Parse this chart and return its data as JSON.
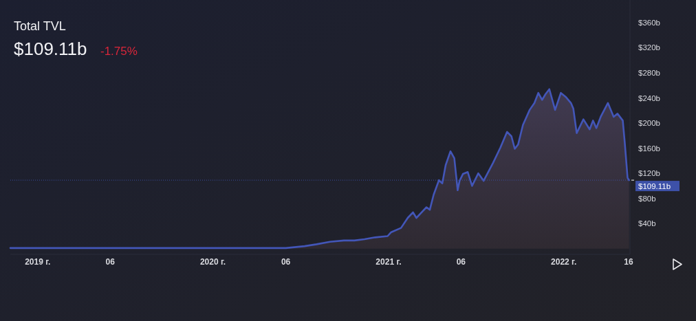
{
  "chart_data": {
    "type": "area",
    "title": "Total TVL",
    "subtitle": "$109.11b",
    "annotations": [
      "-1.75%"
    ],
    "color": "#4356b8",
    "x": [
      "2018-11-05",
      "2019-06-01",
      "2020-01-01",
      "2020-06-01",
      "2020-07-10",
      "2020-08-04",
      "2020-09-01",
      "2020-09-30",
      "2020-10-22",
      "2020-11-12",
      "2020-12-04",
      "2020-12-30",
      "2021-01-06",
      "2021-01-27",
      "2021-02-10",
      "2021-02-21",
      "2021-02-28",
      "2021-03-11",
      "2021-03-21",
      "2021-03-28",
      "2021-04-05",
      "2021-04-16",
      "2021-04-23",
      "2021-04-30",
      "2021-05-10",
      "2021-05-18",
      "2021-05-22",
      "2021-05-25",
      "2021-05-29",
      "2021-06-05",
      "2021-06-15",
      "2021-06-24",
      "2021-07-07",
      "2021-07-18",
      "2021-08-07",
      "2021-08-22",
      "2021-09-05",
      "2021-09-14",
      "2021-09-21",
      "2021-09-28",
      "2021-10-08",
      "2021-10-22",
      "2021-11-01",
      "2021-11-09",
      "2021-11-17",
      "2021-11-24",
      "2021-12-02",
      "2021-12-14",
      "2021-12-26",
      "2022-01-06",
      "2022-01-16",
      "2022-01-21",
      "2022-01-28",
      "2022-02-11",
      "2022-02-24",
      "2022-03-03",
      "2022-03-10",
      "2022-03-19",
      "2022-04-03",
      "2022-04-15",
      "2022-04-23",
      "2022-05-04",
      "2022-05-08",
      "2022-05-14",
      "2022-05-17"
    ],
    "values": [
      1,
      1,
      1,
      1,
      4,
      7,
      11,
      13,
      13,
      15,
      18,
      20,
      26,
      33,
      49,
      58,
      49,
      58,
      66,
      62,
      86,
      109,
      104,
      133,
      155,
      144,
      115,
      93,
      108,
      119,
      122,
      100,
      120,
      108,
      137,
      161,
      186,
      179,
      159,
      166,
      197,
      221,
      232,
      248,
      237,
      246,
      254,
      221,
      248,
      241,
      232,
      223,
      184,
      206,
      190,
      204,
      192,
      210,
      232,
      210,
      215,
      204,
      170,
      113,
      109.11
    ],
    "xlim": [
      "2018-11-05",
      "2022-05-19"
    ],
    "xticks": [
      {
        "value": "2019-01-01",
        "label": "2019 г."
      },
      {
        "value": "2019-06-01",
        "label": "06"
      },
      {
        "value": "2020-01-01",
        "label": "2020 г."
      },
      {
        "value": "2020-06-01",
        "label": "06"
      },
      {
        "value": "2021-01-01",
        "label": "2021 г."
      },
      {
        "value": "2021-06-01",
        "label": "06"
      },
      {
        "value": "2022-01-01",
        "label": "2022 г."
      },
      {
        "value": "2022-05-16",
        "label": "16"
      }
    ],
    "ylim": [
      -9,
      396
    ],
    "yticks": [
      {
        "value": 40,
        "label": "$40b"
      },
      {
        "value": 80,
        "label": "$80b"
      },
      {
        "value": 120,
        "label": "$120b"
      },
      {
        "value": 160,
        "label": "$160b"
      },
      {
        "value": 200,
        "label": "$200b"
      },
      {
        "value": 240,
        "label": "$240b"
      },
      {
        "value": 280,
        "label": "$280b"
      },
      {
        "value": 320,
        "label": "$320b"
      },
      {
        "value": 360,
        "label": "$360b"
      }
    ],
    "ref_lines": [
      {
        "axis": "y",
        "value": 109.11,
        "label": "$109.11b",
        "color": "#3d51a8",
        "line_style": "dotted"
      }
    ]
  }
}
